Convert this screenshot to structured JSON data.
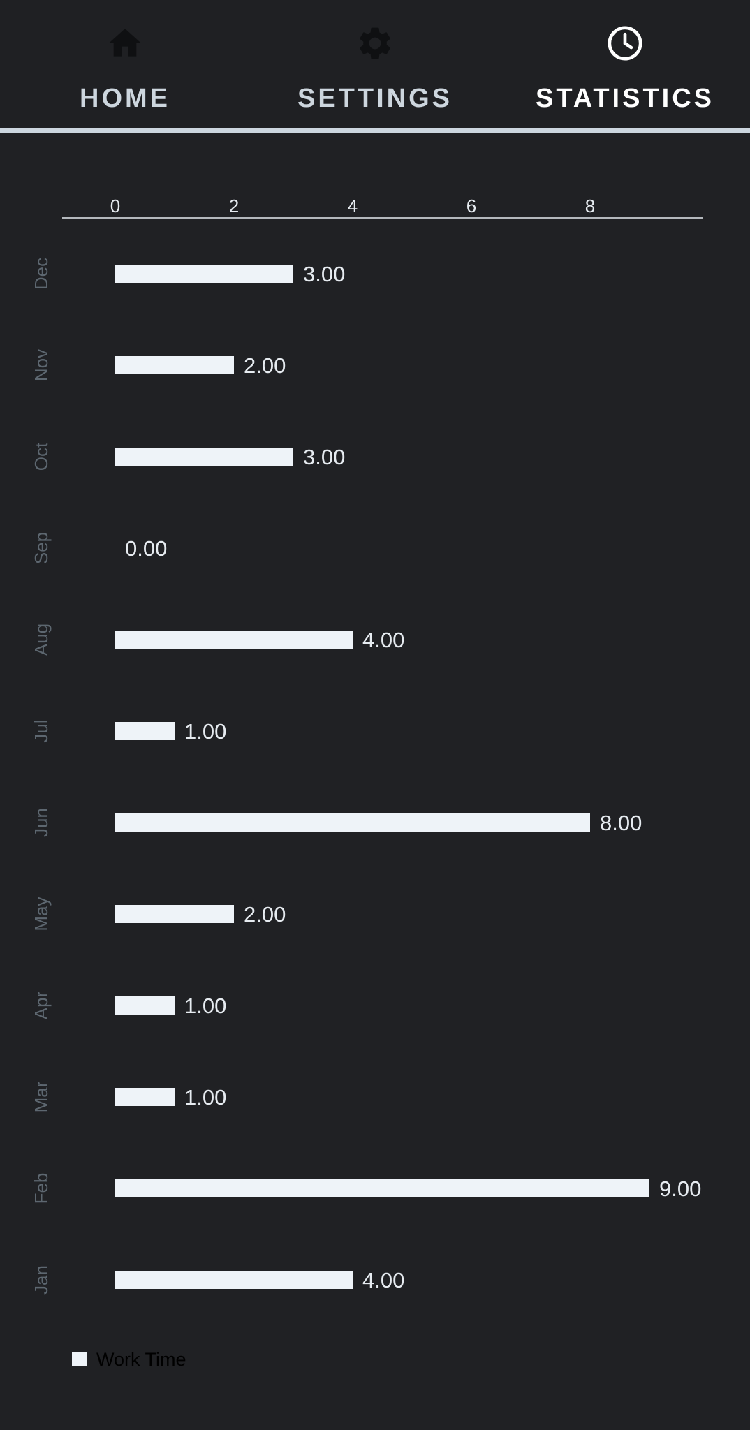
{
  "tabs": [
    {
      "label": "HOME",
      "icon": "home-icon",
      "active": false
    },
    {
      "label": "SETTINGS",
      "icon": "gear-icon",
      "active": false
    },
    {
      "label": "STATISTICS",
      "icon": "clock-icon",
      "active": true
    }
  ],
  "colors": {
    "background": "#202124",
    "bar": "#eef3f8",
    "axis_text": "#e6ebf0",
    "category_text": "#5d6770",
    "inactive_icon": "#0f1012",
    "legend_text": "#000000"
  },
  "chart_data": {
    "type": "bar",
    "orientation": "horizontal",
    "categories": [
      "Dec",
      "Nov",
      "Oct",
      "Sep",
      "Aug",
      "Jul",
      "Jun",
      "May",
      "Apr",
      "Mar",
      "Feb",
      "Jan"
    ],
    "series": [
      {
        "name": "Work Time",
        "values": [
          3,
          2,
          3,
          0,
          4,
          1,
          8,
          2,
          1,
          1,
          9,
          4
        ]
      }
    ],
    "value_labels": [
      "3.00",
      "2.00",
      "3.00",
      "0.00",
      "4.00",
      "1.00",
      "8.00",
      "2.00",
      "1.00",
      "1.00",
      "9.00",
      "4.00"
    ],
    "x_ticks": [
      0,
      2,
      4,
      6,
      8
    ],
    "xlim": [
      0,
      9
    ],
    "axis_position": "top",
    "legend": {
      "position": "bottom-left",
      "label": "Work Time"
    },
    "grid": false,
    "title": "",
    "xlabel": "",
    "ylabel": ""
  }
}
